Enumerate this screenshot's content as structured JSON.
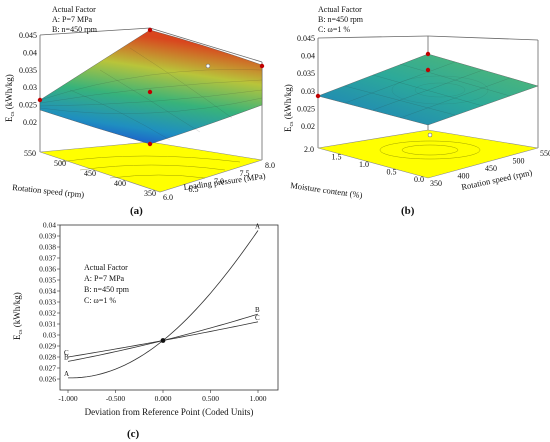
{
  "panels": [
    {
      "label": "(a)",
      "chart_data": {
        "type": "surface",
        "zlabel": "E_cs (kWh/kg)",
        "xlabel": "Loading pressure (MPa)",
        "ylabel": "Rotation speed (rpm)",
        "zticks": [
          "0.045",
          "0.04",
          "0.035",
          "0.03",
          "0.025",
          "0.02"
        ],
        "xticks": [
          "6.0",
          "6.5",
          "7.0",
          "7.5",
          "8.0"
        ],
        "yticks": [
          "350",
          "400",
          "450",
          "500",
          "550"
        ],
        "actual_factor": [
          "Actual Factor",
          "A: P=7 MPa",
          "B: n=450 rpm"
        ],
        "xlim": [
          6.0,
          8.0
        ],
        "ylim": [
          350,
          550
        ],
        "zlim": [
          0.02,
          0.045
        ]
      }
    },
    {
      "label": "(b)",
      "chart_data": {
        "type": "surface",
        "zlabel": "E_cs (kWh/kg)",
        "xlabel": "Rotation speed (rpm)",
        "ylabel": "Moisture content (%)",
        "zticks": [
          "0.045",
          "0.04",
          "0.035",
          "0.03",
          "0.025",
          "0.02"
        ],
        "xticks": [
          "350",
          "400",
          "450",
          "500",
          "550"
        ],
        "yticks": [
          "0.0",
          "0.5",
          "1.0",
          "1.5",
          "2.0"
        ],
        "actual_factor": [
          "Actual Factor",
          "B: n=450 rpm",
          "C: ω=1 %"
        ],
        "xlim": [
          350,
          550
        ],
        "ylim": [
          0.0,
          2.0
        ],
        "zlim": [
          0.02,
          0.045
        ]
      }
    },
    {
      "label": "(c)",
      "chart_data": {
        "type": "line",
        "xlabel": "Deviation from Reference Point (Coded Units)",
        "ylabel": "E_cs (kWh/kg)",
        "xlim": [
          -1.0,
          1.0
        ],
        "ylim": [
          0.025,
          0.04
        ],
        "xticks": [
          "-1.000",
          "-0.500",
          "0.000",
          "0.500",
          "1.000"
        ],
        "yticks": [
          "0.026",
          "0.027",
          "0.028",
          "0.029",
          "0.03",
          "0.031",
          "0.032",
          "0.033",
          "0.034",
          "0.035",
          "0.036",
          "0.037",
          "0.038",
          "0.039",
          "0.04"
        ],
        "actual_factor": [
          "Actual Factor",
          "A: P=7 MPa",
          "B: n=450 rpm",
          "C: ω=1 %"
        ],
        "series": [
          {
            "name": "A",
            "x": [
              -1.0,
              -0.5,
              0.0,
              0.5,
              1.0
            ],
            "y": [
              0.0261,
              0.0269,
              0.0295,
              0.0338,
              0.0395
            ]
          },
          {
            "name": "B",
            "x": [
              -1.0,
              0.0,
              1.0
            ],
            "y": [
              0.0276,
              0.0295,
              0.0319
            ]
          },
          {
            "name": "C",
            "x": [
              -1.0,
              0.0,
              1.0
            ],
            "y": [
              0.028,
              0.0295,
              0.0312
            ]
          }
        ],
        "reference_point": {
          "x": 0.0,
          "y": 0.0295
        }
      }
    }
  ],
  "text": {
    "ecs_main": "E",
    "ecs_sub": "cs",
    "ecs_unit": " (kWh/kg)"
  }
}
